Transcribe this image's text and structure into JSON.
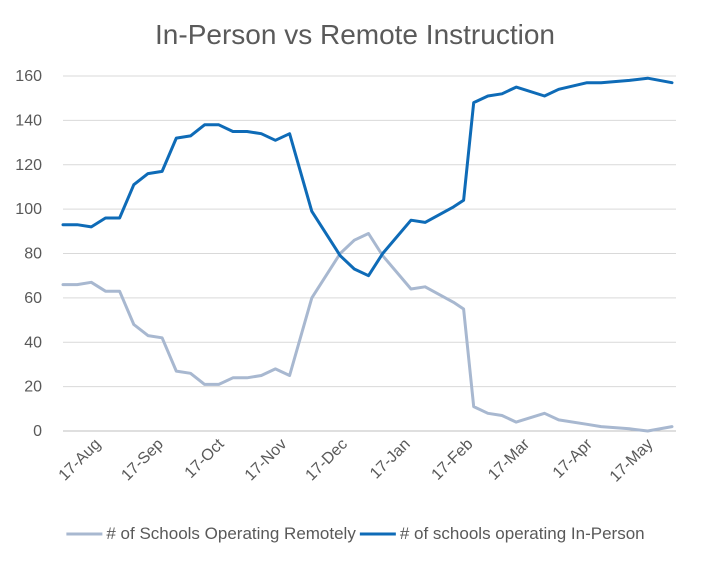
{
  "chart_data": {
    "type": "line",
    "title": "In-Person vs Remote Instruction",
    "xlabel": "",
    "ylabel": "",
    "ylim": [
      0,
      160
    ],
    "yticks": [
      0,
      20,
      40,
      60,
      80,
      100,
      120,
      140,
      160
    ],
    "xlim": [
      "2020-08-01",
      "2021-05-31"
    ],
    "xticks": [
      {
        "date": "2020-08-17",
        "label": "17-Aug"
      },
      {
        "date": "2020-09-17",
        "label": "17-Sep"
      },
      {
        "date": "2020-10-17",
        "label": "17-Oct"
      },
      {
        "date": "2020-11-17",
        "label": "17-Nov"
      },
      {
        "date": "2020-12-17",
        "label": "17-Dec"
      },
      {
        "date": "2021-01-17",
        "label": "17-Jan"
      },
      {
        "date": "2021-02-17",
        "label": "17-Feb"
      },
      {
        "date": "2021-03-17",
        "label": "17-Mar"
      },
      {
        "date": "2021-04-17",
        "label": "17-Apr"
      },
      {
        "date": "2021-05-17",
        "label": "17-May"
      }
    ],
    "grid": true,
    "legend_position": "bottom",
    "series": [
      {
        "name": "# of Schools Operating Remotely",
        "color": "#a8b8d0",
        "points": [
          {
            "x": "2020-08-01",
            "y": 66
          },
          {
            "x": "2020-08-08",
            "y": 66
          },
          {
            "x": "2020-08-15",
            "y": 67
          },
          {
            "x": "2020-08-22",
            "y": 63
          },
          {
            "x": "2020-08-29",
            "y": 63
          },
          {
            "x": "2020-09-05",
            "y": 48
          },
          {
            "x": "2020-09-12",
            "y": 43
          },
          {
            "x": "2020-09-19",
            "y": 42
          },
          {
            "x": "2020-09-26",
            "y": 27
          },
          {
            "x": "2020-10-03",
            "y": 26
          },
          {
            "x": "2020-10-10",
            "y": 21
          },
          {
            "x": "2020-10-17",
            "y": 21
          },
          {
            "x": "2020-10-24",
            "y": 24
          },
          {
            "x": "2020-10-31",
            "y": 24
          },
          {
            "x": "2020-11-07",
            "y": 25
          },
          {
            "x": "2020-11-14",
            "y": 28
          },
          {
            "x": "2020-11-21",
            "y": 25
          },
          {
            "x": "2020-12-02",
            "y": 60
          },
          {
            "x": "2020-12-16",
            "y": 80
          },
          {
            "x": "2020-12-23",
            "y": 86
          },
          {
            "x": "2020-12-30",
            "y": 89
          },
          {
            "x": "2021-01-06",
            "y": 79
          },
          {
            "x": "2021-01-20",
            "y": 64
          },
          {
            "x": "2021-01-27",
            "y": 65
          },
          {
            "x": "2021-02-10",
            "y": 58
          },
          {
            "x": "2021-02-15",
            "y": 55
          },
          {
            "x": "2021-02-20",
            "y": 11
          },
          {
            "x": "2021-02-27",
            "y": 8
          },
          {
            "x": "2021-03-06",
            "y": 7
          },
          {
            "x": "2021-03-13",
            "y": 4
          },
          {
            "x": "2021-03-27",
            "y": 8
          },
          {
            "x": "2021-04-03",
            "y": 5
          },
          {
            "x": "2021-04-17",
            "y": 3
          },
          {
            "x": "2021-04-24",
            "y": 2
          },
          {
            "x": "2021-05-08",
            "y": 1
          },
          {
            "x": "2021-05-17",
            "y": 0
          },
          {
            "x": "2021-05-29",
            "y": 2
          }
        ]
      },
      {
        "name": "# of schools operating In-Person",
        "color": "#0e6bb7",
        "points": [
          {
            "x": "2020-08-01",
            "y": 93
          },
          {
            "x": "2020-08-08",
            "y": 93
          },
          {
            "x": "2020-08-15",
            "y": 92
          },
          {
            "x": "2020-08-22",
            "y": 96
          },
          {
            "x": "2020-08-29",
            "y": 96
          },
          {
            "x": "2020-09-05",
            "y": 111
          },
          {
            "x": "2020-09-12",
            "y": 116
          },
          {
            "x": "2020-09-19",
            "y": 117
          },
          {
            "x": "2020-09-26",
            "y": 132
          },
          {
            "x": "2020-10-03",
            "y": 133
          },
          {
            "x": "2020-10-10",
            "y": 138
          },
          {
            "x": "2020-10-17",
            "y": 138
          },
          {
            "x": "2020-10-24",
            "y": 135
          },
          {
            "x": "2020-10-31",
            "y": 135
          },
          {
            "x": "2020-11-07",
            "y": 134
          },
          {
            "x": "2020-11-14",
            "y": 131
          },
          {
            "x": "2020-11-21",
            "y": 134
          },
          {
            "x": "2020-12-02",
            "y": 99
          },
          {
            "x": "2020-12-16",
            "y": 79
          },
          {
            "x": "2020-12-23",
            "y": 73
          },
          {
            "x": "2020-12-30",
            "y": 70
          },
          {
            "x": "2021-01-06",
            "y": 80
          },
          {
            "x": "2021-01-20",
            "y": 95
          },
          {
            "x": "2021-01-27",
            "y": 94
          },
          {
            "x": "2021-02-10",
            "y": 101
          },
          {
            "x": "2021-02-15",
            "y": 104
          },
          {
            "x": "2021-02-20",
            "y": 148
          },
          {
            "x": "2021-02-27",
            "y": 151
          },
          {
            "x": "2021-03-06",
            "y": 152
          },
          {
            "x": "2021-03-13",
            "y": 155
          },
          {
            "x": "2021-03-27",
            "y": 151
          },
          {
            "x": "2021-04-03",
            "y": 154
          },
          {
            "x": "2021-04-17",
            "y": 157
          },
          {
            "x": "2021-04-24",
            "y": 157
          },
          {
            "x": "2021-05-08",
            "y": 158
          },
          {
            "x": "2021-05-17",
            "y": 159
          },
          {
            "x": "2021-05-29",
            "y": 157
          }
        ]
      }
    ]
  }
}
